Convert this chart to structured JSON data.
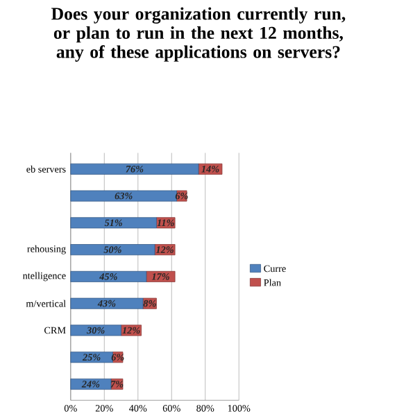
{
  "chart_data": {
    "type": "bar",
    "orientation": "horizontal",
    "stacked": true,
    "title": "Does your organization currently run, or plan to run in the next 12 months, any of these applications on servers?",
    "categories": [
      "eb servers",
      null,
      null,
      "rehousing",
      "ntelligence",
      "m/vertical",
      "CRM",
      null,
      null
    ],
    "series": [
      {
        "name": "Curre",
        "color": "#4f81bd",
        "values": [
          76,
          63,
          51,
          50,
          45,
          43,
          30,
          25,
          24
        ],
        "value_labels": [
          "76%",
          "63%",
          "51%",
          "50%",
          "45%",
          "43%",
          "30%",
          "25%",
          "24%"
        ]
      },
      {
        "name": "Plan",
        "color": "#c0504d",
        "values": [
          14,
          6,
          11,
          12,
          17,
          8,
          12,
          6,
          7
        ],
        "value_labels": [
          "14%",
          "6%",
          "11%",
          "12%",
          "17%",
          "8%",
          "12%",
          "6%",
          "7%"
        ]
      }
    ],
    "xlim": [
      0,
      100
    ],
    "xticks": [
      {
        "value": 0,
        "label": "0%"
      },
      {
        "value": 20,
        "label": "20%"
      },
      {
        "value": 40,
        "label": "40%"
      },
      {
        "value": 60,
        "label": "60%"
      },
      {
        "value": 80,
        "label": "80%"
      },
      {
        "value": 100,
        "label": "100%"
      }
    ],
    "grid": "x",
    "legend": "right"
  }
}
